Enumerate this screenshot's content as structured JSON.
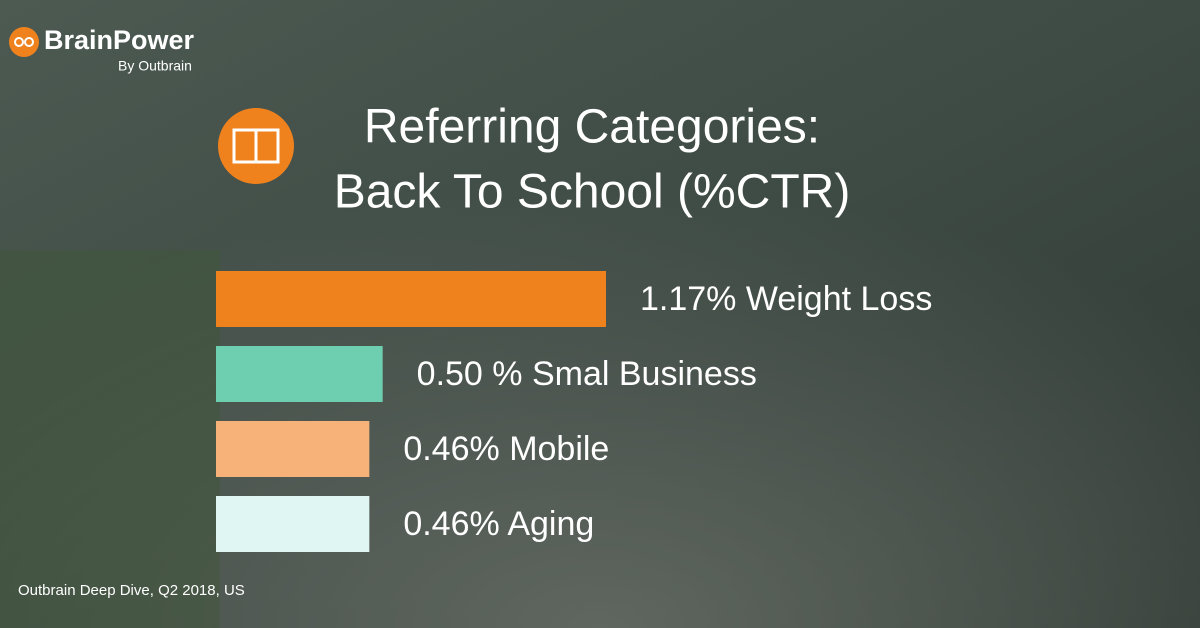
{
  "logo": {
    "brand": "BrainPower",
    "byline": "By Outbrain"
  },
  "chart_data": {
    "type": "bar",
    "orientation": "horizontal",
    "title": "Referring Categories:",
    "subtitle": "Back To School (%CTR)",
    "categories": [
      "Weight Loss",
      "Smal Business",
      "Mobile",
      "Aging"
    ],
    "values": [
      1.17,
      0.5,
      0.46,
      0.46
    ],
    "value_labels": [
      "1.17%",
      "0.50 %",
      "0.46%",
      "0.46%"
    ],
    "colors": [
      "#f0821e",
      "#6dcfb0",
      "#f7b27a",
      "#e0f6f2"
    ],
    "source": "Outbrain Deep Dive, Q2 2018, US"
  }
}
